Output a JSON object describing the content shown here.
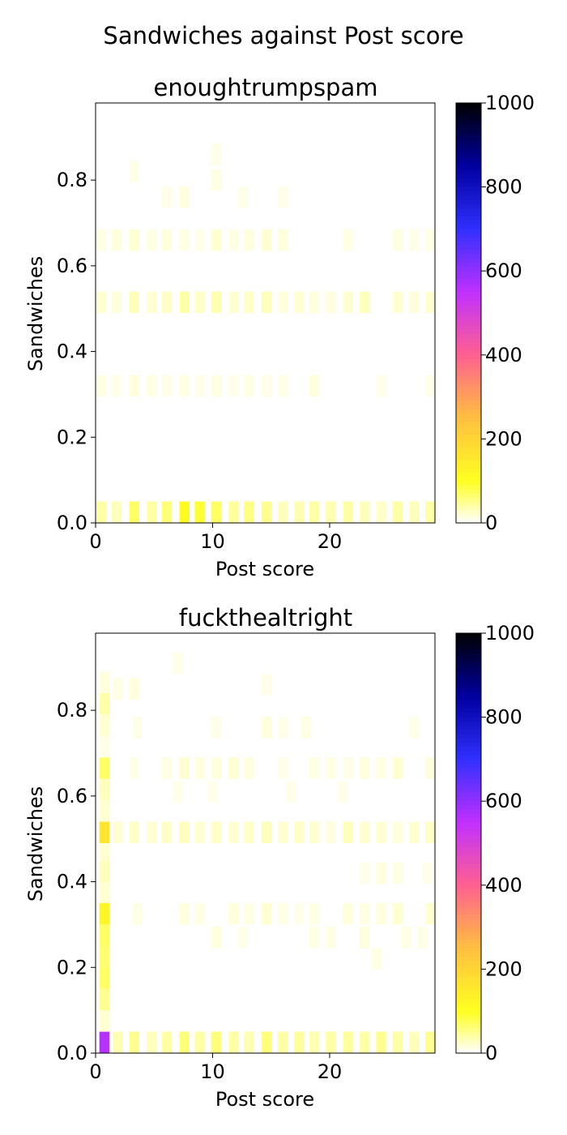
{
  "figure": {
    "suptitle": "Sandwiches against Post score"
  },
  "colormap": {
    "name": "gnuplot2_r",
    "stops": [
      {
        "v": 0.0,
        "color": "#ffffff"
      },
      {
        "v": 0.1,
        "color": "#ffff20"
      },
      {
        "v": 0.25,
        "color": "#ffbf40"
      },
      {
        "v": 0.4,
        "color": "#ff6090"
      },
      {
        "v": 0.55,
        "color": "#c030ff"
      },
      {
        "v": 0.7,
        "color": "#3030ff"
      },
      {
        "v": 0.85,
        "color": "#0000a0"
      },
      {
        "v": 1.0,
        "color": "#000000"
      }
    ]
  },
  "chart_data": [
    {
      "type": "heatmap",
      "title": "enoughtrumpspam",
      "xlabel": "Post score",
      "ylabel": "Sandwiches",
      "xlim": [
        0,
        29
      ],
      "ylim": [
        0,
        0.98
      ],
      "xticks": [
        0,
        10,
        20
      ],
      "yticks": [
        0.0,
        0.2,
        0.4,
        0.6,
        0.8
      ],
      "ytick_labels": [
        "0.0",
        "0.2",
        "0.4",
        "0.6",
        "0.8"
      ],
      "colorbar": {
        "min": 0,
        "max": 1000,
        "ticks": [
          0,
          200,
          400,
          600,
          800,
          1000
        ]
      },
      "bin": {
        "dx": 0.85,
        "dy": 0.05
      },
      "cells": [
        [
          0.5,
          0.025,
          40
        ],
        [
          1.8,
          0.025,
          30
        ],
        [
          3.3,
          0.025,
          70
        ],
        [
          4.8,
          0.025,
          40
        ],
        [
          6.1,
          0.025,
          60
        ],
        [
          7.6,
          0.025,
          110
        ],
        [
          8.9,
          0.025,
          90
        ],
        [
          10.3,
          0.025,
          70
        ],
        [
          11.8,
          0.025,
          45
        ],
        [
          13.1,
          0.025,
          55
        ],
        [
          14.6,
          0.025,
          50
        ],
        [
          16.0,
          0.025,
          30
        ],
        [
          17.4,
          0.025,
          35
        ],
        [
          18.7,
          0.025,
          40
        ],
        [
          20.1,
          0.025,
          35
        ],
        [
          21.6,
          0.025,
          40
        ],
        [
          23.0,
          0.025,
          30
        ],
        [
          24.4,
          0.025,
          25
        ],
        [
          25.8,
          0.025,
          40
        ],
        [
          27.2,
          0.025,
          30
        ],
        [
          28.6,
          0.025,
          40
        ],
        [
          0.5,
          0.32,
          12
        ],
        [
          1.8,
          0.32,
          10
        ],
        [
          3.3,
          0.32,
          15
        ],
        [
          4.8,
          0.32,
          12
        ],
        [
          6.1,
          0.32,
          10
        ],
        [
          7.6,
          0.32,
          12
        ],
        [
          8.9,
          0.32,
          10
        ],
        [
          10.3,
          0.32,
          12
        ],
        [
          11.8,
          0.32,
          10
        ],
        [
          13.1,
          0.32,
          12
        ],
        [
          14.6,
          0.32,
          10
        ],
        [
          16.0,
          0.32,
          10
        ],
        [
          18.7,
          0.32,
          15
        ],
        [
          24.4,
          0.32,
          10
        ],
        [
          28.6,
          0.32,
          10
        ],
        [
          0.5,
          0.515,
          20
        ],
        [
          1.8,
          0.515,
          15
        ],
        [
          3.3,
          0.515,
          30
        ],
        [
          4.8,
          0.515,
          20
        ],
        [
          6.1,
          0.515,
          25
        ],
        [
          7.6,
          0.515,
          40
        ],
        [
          8.9,
          0.515,
          25
        ],
        [
          10.3,
          0.515,
          35
        ],
        [
          11.8,
          0.515,
          20
        ],
        [
          13.1,
          0.515,
          25
        ],
        [
          14.6,
          0.515,
          30
        ],
        [
          16.0,
          0.515,
          15
        ],
        [
          17.4,
          0.515,
          20
        ],
        [
          18.7,
          0.515,
          15
        ],
        [
          20.1,
          0.515,
          15
        ],
        [
          21.6,
          0.515,
          20
        ],
        [
          23.0,
          0.515,
          30
        ],
        [
          25.8,
          0.515,
          20
        ],
        [
          27.2,
          0.515,
          15
        ],
        [
          28.6,
          0.515,
          20
        ],
        [
          0.5,
          0.66,
          12
        ],
        [
          1.8,
          0.66,
          15
        ],
        [
          3.3,
          0.66,
          20
        ],
        [
          4.8,
          0.66,
          12
        ],
        [
          6.1,
          0.66,
          15
        ],
        [
          7.6,
          0.66,
          12
        ],
        [
          8.9,
          0.66,
          10
        ],
        [
          10.3,
          0.66,
          20
        ],
        [
          11.8,
          0.66,
          12
        ],
        [
          13.1,
          0.66,
          15
        ],
        [
          14.6,
          0.66,
          20
        ],
        [
          16.0,
          0.66,
          15
        ],
        [
          21.6,
          0.66,
          12
        ],
        [
          25.8,
          0.66,
          12
        ],
        [
          27.2,
          0.66,
          10
        ],
        [
          28.6,
          0.66,
          12
        ],
        [
          3.3,
          0.82,
          10
        ],
        [
          6.1,
          0.76,
          10
        ],
        [
          7.6,
          0.76,
          15
        ],
        [
          10.3,
          0.8,
          12
        ],
        [
          10.3,
          0.86,
          10
        ],
        [
          12.6,
          0.76,
          10
        ],
        [
          16.0,
          0.76,
          10
        ]
      ]
    },
    {
      "type": "heatmap",
      "title": "fuckthealtright",
      "xlabel": "Post score",
      "ylabel": "Sandwiches",
      "xlim": [
        0,
        29
      ],
      "ylim": [
        0,
        0.98
      ],
      "xticks": [
        0,
        10,
        20
      ],
      "yticks": [
        0.0,
        0.2,
        0.4,
        0.6,
        0.8
      ],
      "ytick_labels": [
        "0.0",
        "0.2",
        "0.4",
        "0.6",
        "0.8"
      ],
      "colorbar": {
        "min": 0,
        "max": 1000,
        "ticks": [
          0,
          200,
          400,
          600,
          800,
          1000
        ]
      },
      "bin": {
        "dx": 0.85,
        "dy": 0.05
      },
      "cells": [
        [
          0.75,
          0.025,
          560
        ],
        [
          0.75,
          0.075,
          20
        ],
        [
          0.75,
          0.125,
          50
        ],
        [
          0.75,
          0.175,
          70
        ],
        [
          0.75,
          0.225,
          65
        ],
        [
          0.75,
          0.275,
          70
        ],
        [
          0.75,
          0.325,
          120
        ],
        [
          0.75,
          0.375,
          20
        ],
        [
          0.75,
          0.425,
          30
        ],
        [
          0.75,
          0.475,
          20
        ],
        [
          0.75,
          0.515,
          160
        ],
        [
          0.75,
          0.565,
          20
        ],
        [
          0.75,
          0.615,
          30
        ],
        [
          0.75,
          0.665,
          70
        ],
        [
          0.75,
          0.715,
          10
        ],
        [
          0.75,
          0.765,
          20
        ],
        [
          0.75,
          0.815,
          40
        ],
        [
          0.75,
          0.865,
          15
        ],
        [
          1.9,
          0.025,
          35
        ],
        [
          3.3,
          0.025,
          50
        ],
        [
          4.8,
          0.025,
          30
        ],
        [
          6.1,
          0.025,
          40
        ],
        [
          7.6,
          0.025,
          60
        ],
        [
          8.9,
          0.025,
          40
        ],
        [
          10.3,
          0.025,
          60
        ],
        [
          11.8,
          0.025,
          40
        ],
        [
          13.1,
          0.025,
          35
        ],
        [
          14.6,
          0.025,
          60
        ],
        [
          16.0,
          0.025,
          40
        ],
        [
          17.4,
          0.025,
          45
        ],
        [
          18.7,
          0.025,
          35
        ],
        [
          20.1,
          0.025,
          40
        ],
        [
          21.6,
          0.025,
          45
        ],
        [
          23.0,
          0.025,
          40
        ],
        [
          24.4,
          0.025,
          50
        ],
        [
          25.8,
          0.025,
          40
        ],
        [
          27.2,
          0.025,
          30
        ],
        [
          28.6,
          0.025,
          50
        ],
        [
          1.9,
          0.515,
          20
        ],
        [
          3.3,
          0.515,
          25
        ],
        [
          4.8,
          0.515,
          20
        ],
        [
          6.1,
          0.515,
          25
        ],
        [
          7.6,
          0.515,
          30
        ],
        [
          8.9,
          0.515,
          20
        ],
        [
          10.3,
          0.515,
          25
        ],
        [
          11.8,
          0.515,
          20
        ],
        [
          13.1,
          0.515,
          25
        ],
        [
          14.6,
          0.515,
          30
        ],
        [
          16.0,
          0.515,
          20
        ],
        [
          17.4,
          0.515,
          25
        ],
        [
          18.7,
          0.515,
          20
        ],
        [
          20.1,
          0.515,
          15
        ],
        [
          21.6,
          0.515,
          30
        ],
        [
          23.0,
          0.515,
          20
        ],
        [
          24.4,
          0.515,
          20
        ],
        [
          25.8,
          0.515,
          15
        ],
        [
          27.2,
          0.515,
          20
        ],
        [
          28.6,
          0.515,
          25
        ],
        [
          1.9,
          0.85,
          12
        ],
        [
          3.3,
          0.85,
          15
        ],
        [
          7.0,
          0.91,
          10
        ],
        [
          14.6,
          0.86,
          10
        ],
        [
          3.6,
          0.76,
          10
        ],
        [
          10.3,
          0.76,
          10
        ],
        [
          14.6,
          0.76,
          15
        ],
        [
          16.0,
          0.76,
          10
        ],
        [
          18.0,
          0.76,
          12
        ],
        [
          27.2,
          0.76,
          10
        ],
        [
          3.3,
          0.665,
          10
        ],
        [
          6.1,
          0.665,
          12
        ],
        [
          7.6,
          0.665,
          20
        ],
        [
          8.9,
          0.665,
          15
        ],
        [
          10.3,
          0.665,
          15
        ],
        [
          11.8,
          0.665,
          20
        ],
        [
          13.1,
          0.665,
          15
        ],
        [
          16.0,
          0.665,
          10
        ],
        [
          18.7,
          0.665,
          12
        ],
        [
          20.1,
          0.665,
          12
        ],
        [
          21.6,
          0.665,
          10
        ],
        [
          23.0,
          0.665,
          15
        ],
        [
          24.4,
          0.665,
          12
        ],
        [
          25.8,
          0.665,
          20
        ],
        [
          28.6,
          0.665,
          15
        ],
        [
          7.0,
          0.61,
          10
        ],
        [
          10.0,
          0.61,
          10
        ],
        [
          16.7,
          0.61,
          10
        ],
        [
          21.1,
          0.61,
          10
        ],
        [
          3.6,
          0.325,
          12
        ],
        [
          7.6,
          0.325,
          15
        ],
        [
          8.9,
          0.325,
          12
        ],
        [
          11.8,
          0.325,
          15
        ],
        [
          13.1,
          0.325,
          12
        ],
        [
          14.6,
          0.325,
          20
        ],
        [
          16.0,
          0.325,
          12
        ],
        [
          17.4,
          0.325,
          10
        ],
        [
          18.7,
          0.325,
          12
        ],
        [
          21.6,
          0.325,
          15
        ],
        [
          23.0,
          0.325,
          12
        ],
        [
          24.4,
          0.325,
          15
        ],
        [
          25.8,
          0.325,
          20
        ],
        [
          28.6,
          0.325,
          20
        ],
        [
          10.3,
          0.27,
          15
        ],
        [
          12.6,
          0.27,
          10
        ],
        [
          18.7,
          0.27,
          12
        ],
        [
          20.1,
          0.27,
          12
        ],
        [
          23.0,
          0.27,
          15
        ],
        [
          26.5,
          0.27,
          12
        ],
        [
          27.9,
          0.27,
          12
        ],
        [
          23.0,
          0.42,
          10
        ],
        [
          24.4,
          0.42,
          15
        ],
        [
          25.8,
          0.42,
          12
        ],
        [
          28.4,
          0.42,
          10
        ],
        [
          24.0,
          0.22,
          12
        ]
      ]
    }
  ]
}
